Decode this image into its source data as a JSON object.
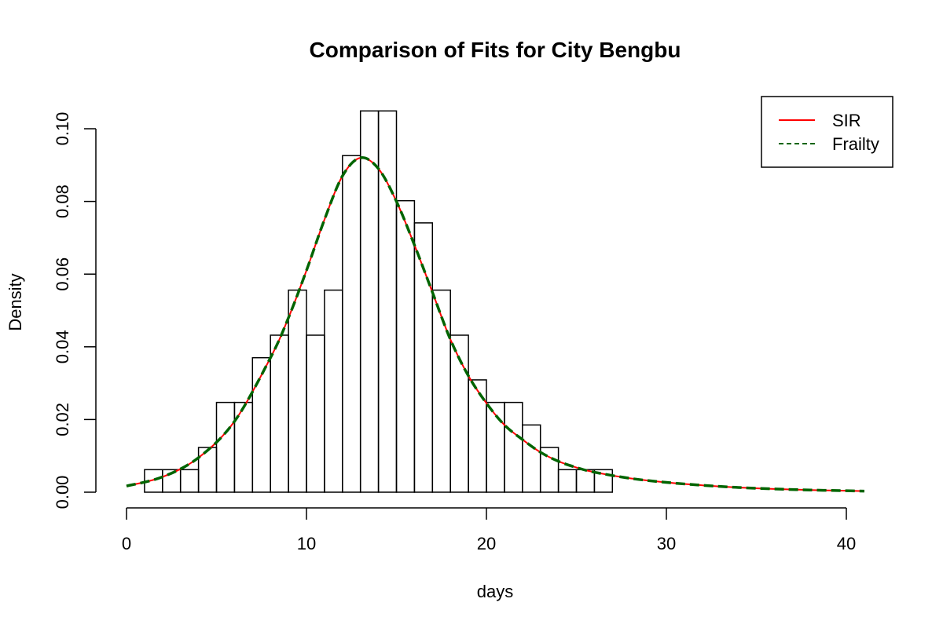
{
  "chart_data": {
    "type": "bar",
    "title": "Comparison of Fits for City Bengbu",
    "xlabel": "days",
    "ylabel": "Density",
    "xlim": [
      0,
      41
    ],
    "ylim": [
      0,
      0.105
    ],
    "x_ticks": [
      0,
      10,
      20,
      30,
      40
    ],
    "x_tick_labels": [
      "0",
      "10",
      "20",
      "30",
      "40"
    ],
    "y_ticks": [
      0,
      0.02,
      0.04,
      0.06,
      0.08,
      0.1
    ],
    "y_tick_labels": [
      "0.00",
      "0.02",
      "0.04",
      "0.06",
      "0.08",
      "0.10"
    ],
    "grid": false,
    "legend_position": "top-right",
    "bins": [
      {
        "start": 0,
        "end": 1,
        "density": 0
      },
      {
        "start": 1,
        "end": 2,
        "density": 0.0062
      },
      {
        "start": 2,
        "end": 3,
        "density": 0.0062
      },
      {
        "start": 3,
        "end": 4,
        "density": 0.0062
      },
      {
        "start": 4,
        "end": 5,
        "density": 0.0123
      },
      {
        "start": 5,
        "end": 6,
        "density": 0.0247
      },
      {
        "start": 6,
        "end": 7,
        "density": 0.0247
      },
      {
        "start": 7,
        "end": 8,
        "density": 0.037
      },
      {
        "start": 8,
        "end": 9,
        "density": 0.0432
      },
      {
        "start": 9,
        "end": 10,
        "density": 0.0556
      },
      {
        "start": 10,
        "end": 11,
        "density": 0.0432
      },
      {
        "start": 11,
        "end": 12,
        "density": 0.0556
      },
      {
        "start": 12,
        "end": 13,
        "density": 0.0926
      },
      {
        "start": 13,
        "end": 14,
        "density": 0.1049
      },
      {
        "start": 14,
        "end": 15,
        "density": 0.1049
      },
      {
        "start": 15,
        "end": 16,
        "density": 0.0802
      },
      {
        "start": 16,
        "end": 17,
        "density": 0.0741
      },
      {
        "start": 17,
        "end": 18,
        "density": 0.0556
      },
      {
        "start": 18,
        "end": 19,
        "density": 0.0432
      },
      {
        "start": 19,
        "end": 20,
        "density": 0.0309
      },
      {
        "start": 20,
        "end": 21,
        "density": 0.0247
      },
      {
        "start": 21,
        "end": 22,
        "density": 0.0247
      },
      {
        "start": 22,
        "end": 23,
        "density": 0.0185
      },
      {
        "start": 23,
        "end": 24,
        "density": 0.0123
      },
      {
        "start": 24,
        "end": 25,
        "density": 0.0062
      },
      {
        "start": 25,
        "end": 26,
        "density": 0.0062
      },
      {
        "start": 26,
        "end": 27,
        "density": 0.0062
      }
    ],
    "series": [
      {
        "name": "SIR",
        "color": "#ff0000",
        "line_style": "solid",
        "x": [
          0,
          2,
          4,
          6,
          8,
          9,
          10,
          11,
          12,
          13,
          14,
          15,
          16,
          17,
          18,
          19,
          20,
          21,
          22,
          23,
          24,
          25,
          26,
          28,
          30,
          32,
          34,
          36,
          38,
          40,
          41
        ],
        "y": [
          0.0017,
          0.0042,
          0.0095,
          0.0195,
          0.037,
          0.048,
          0.061,
          0.075,
          0.087,
          0.092,
          0.089,
          0.08,
          0.068,
          0.055,
          0.042,
          0.032,
          0.0245,
          0.0185,
          0.0145,
          0.011,
          0.0085,
          0.0068,
          0.0055,
          0.0038,
          0.0027,
          0.0019,
          0.0013,
          0.0009,
          0.0006,
          0.0004,
          0.0003
        ]
      },
      {
        "name": "Frailty",
        "color": "#006400",
        "line_style": "dashed",
        "x": [
          0,
          2,
          4,
          6,
          8,
          9,
          10,
          11,
          12,
          13,
          14,
          15,
          16,
          17,
          18,
          19,
          20,
          21,
          22,
          23,
          24,
          25,
          26,
          28,
          30,
          32,
          34,
          36,
          38,
          40,
          41
        ],
        "y": [
          0.0017,
          0.0042,
          0.0095,
          0.0195,
          0.037,
          0.048,
          0.061,
          0.075,
          0.087,
          0.092,
          0.089,
          0.08,
          0.068,
          0.055,
          0.042,
          0.032,
          0.0245,
          0.0185,
          0.0145,
          0.011,
          0.0085,
          0.0068,
          0.0055,
          0.0038,
          0.0027,
          0.0019,
          0.0013,
          0.0009,
          0.0006,
          0.0004,
          0.0003
        ]
      }
    ]
  }
}
